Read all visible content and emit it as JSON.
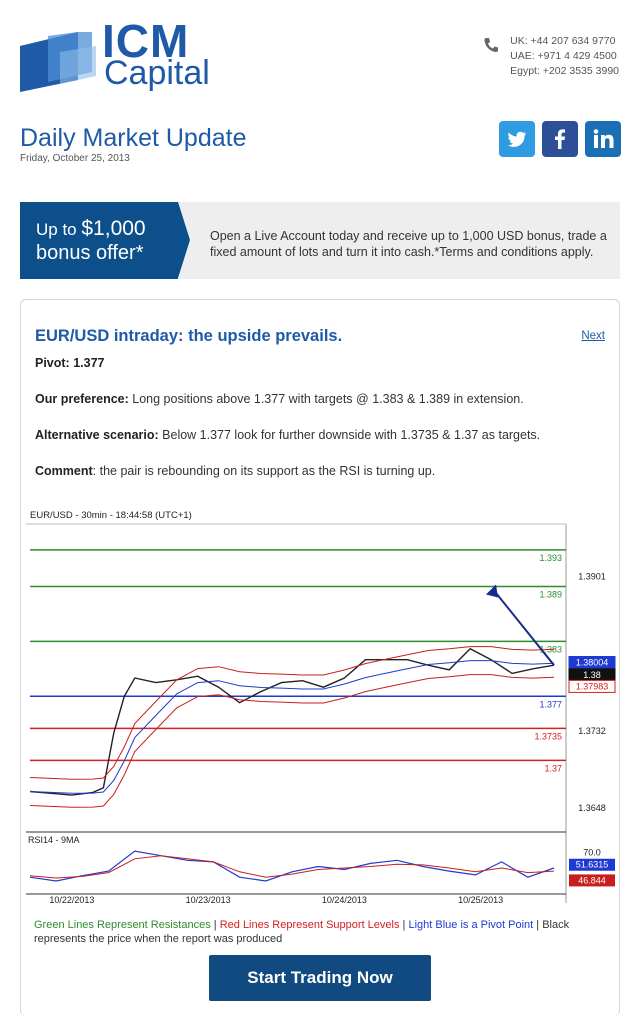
{
  "brand": {
    "line1": "ICM",
    "line2": "Capital",
    "color": "#1f5aa6"
  },
  "contacts": [
    "UK: +44 207 634 9770",
    "UAE: +971 4 429 4500",
    "Egypt: +202 3535 3990"
  ],
  "header": {
    "title": "Daily Market Update",
    "date": "Friday, October 25, 2013"
  },
  "social": [
    "twitter-icon",
    "facebook-icon",
    "linkedin-icon"
  ],
  "promo": {
    "up_to": "Up to",
    "amount": "$1,000",
    "bonus": "bonus offer*",
    "text": "Open a Live Account today and receive up to 1,000 USD bonus, trade a fixed amount of lots and turn it into cash.*Terms and conditions apply."
  },
  "article": {
    "title": "EUR/USD intraday: the upside prevails.",
    "next": "Next",
    "pivot_label": "Pivot:",
    "pivot_value": "1.377",
    "preference_label": "Our preference:",
    "preference_text": "Long positions above 1.377 with targets @ 1.383 & 1.389 in extension.",
    "alternative_label": "Alternative scenario:",
    "alternative_text": "Below 1.377 look for further downside with 1.3735 & 1.37 as targets.",
    "comment_label": "Comment",
    "comment_text": ": the pair is rebounding on its support as the RSI is turning up."
  },
  "chart_data": {
    "type": "line",
    "title": "EUR/USD - 30min - 18:44:58 (UTC+1)",
    "x_ticks": [
      "10/22/2013",
      "10/23/2013",
      "10/24/2013",
      "10/25/2013"
    ],
    "y_ticks": [
      "1.3901",
      "1.3732",
      "1.3648"
    ],
    "ylim": [
      1.3625,
      1.3955
    ],
    "levels": [
      {
        "label": "1.393",
        "value": 1.393,
        "color": "#2e8b2e"
      },
      {
        "label": "1.389",
        "value": 1.389,
        "color": "#2e8b2e"
      },
      {
        "label": "1.383",
        "value": 1.383,
        "color": "#2e8b2e"
      },
      {
        "label": "1.377",
        "value": 1.377,
        "color": "#1f3ad0"
      },
      {
        "label": "1.3735",
        "value": 1.3735,
        "color": "#d42020"
      },
      {
        "label": "1.37",
        "value": 1.37,
        "color": "#d42020"
      }
    ],
    "price_badges": [
      {
        "label": "1.38004",
        "color": "#1f3ad0"
      },
      {
        "label": "1.38",
        "color": "#111111"
      },
      {
        "label": "1.37983",
        "color": "#d42020"
      }
    ],
    "price_x": [
      0,
      4,
      8,
      12,
      14,
      16,
      18,
      20,
      24,
      28,
      32,
      36,
      40,
      44,
      48,
      52,
      56,
      60,
      64,
      68,
      72,
      76,
      80,
      84,
      88,
      92,
      96,
      100
    ],
    "price_y": [
      1.3666,
      1.3664,
      1.3662,
      1.3665,
      1.367,
      1.373,
      1.377,
      1.379,
      1.3785,
      1.3788,
      1.3792,
      1.378,
      1.3763,
      1.3775,
      1.3785,
      1.3787,
      1.378,
      1.379,
      1.381,
      1.381,
      1.381,
      1.3804,
      1.3799,
      1.3822,
      1.381,
      1.3795,
      1.38,
      1.3804
    ],
    "rsi": {
      "label": "RSI14 - 9MA",
      "level_label": "70.0",
      "badge_values": [
        "51.6315",
        "46.844"
      ],
      "x": [
        0,
        5,
        10,
        15,
        20,
        25,
        30,
        35,
        40,
        45,
        50,
        55,
        60,
        65,
        70,
        75,
        80,
        85,
        90,
        95,
        100
      ],
      "rsi_values": [
        38,
        33,
        40,
        46,
        72,
        66,
        60,
        58,
        38,
        33,
        45,
        52,
        48,
        56,
        60,
        52,
        46,
        41,
        58,
        38,
        50
      ],
      "ma_values": [
        40,
        37,
        39,
        44,
        62,
        66,
        62,
        58,
        45,
        38,
        42,
        48,
        50,
        52,
        55,
        54,
        50,
        45,
        50,
        44,
        46
      ]
    }
  },
  "legend": {
    "green": "Green Lines Represent Resistances",
    "sep1": " | ",
    "red": "Red Lines Represent Support Levels",
    "sep2": " | ",
    "blue": "Light Blue is a Pivot Point",
    "sep3": " | ",
    "black": "Black represents the price when the report was produced"
  },
  "cta": {
    "label": "Start Trading Now"
  }
}
